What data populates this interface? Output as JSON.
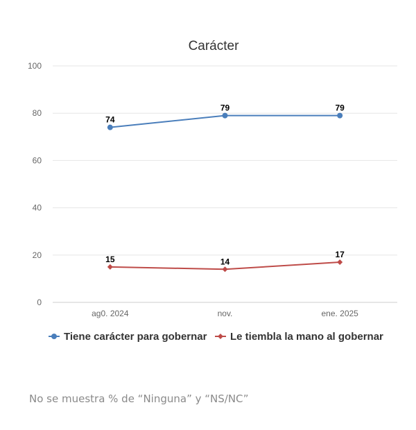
{
  "chart_data": {
    "type": "line",
    "title": "Carácter",
    "categories": [
      "ag0. 2024",
      "nov.",
      "ene. 2025"
    ],
    "ylim": [
      0,
      100
    ],
    "yticks": [
      0,
      20,
      40,
      60,
      80,
      100
    ],
    "xlabel": "",
    "ylabel": "",
    "grid": true,
    "legend_position": "bottom",
    "series": [
      {
        "name": "Tiene carácter para gobernar",
        "values": [
          74,
          79,
          79
        ],
        "color": "#4a7ebb",
        "marker": "circle"
      },
      {
        "name": "Le tiembla la mano al gobernar",
        "values": [
          15,
          14,
          17
        ],
        "color": "#be4b48",
        "marker": "diamond"
      }
    ]
  },
  "footnote": "No se muestra % de “Ninguna” y “NS/NC”"
}
